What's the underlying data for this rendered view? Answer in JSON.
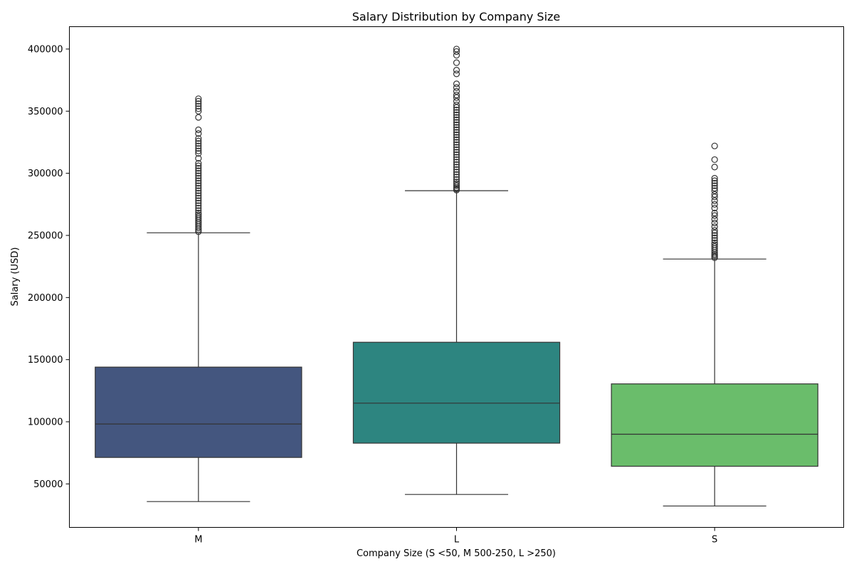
{
  "chart_data": {
    "type": "box",
    "title": "Salary Distribution by Company Size",
    "xlabel": "Company Size (S <50, M 500-250, L >250)",
    "ylabel": "Salary (USD)",
    "ylim": [
      15000,
      418000
    ],
    "yticks": [
      50000,
      100000,
      150000,
      200000,
      250000,
      300000,
      350000,
      400000
    ],
    "ytick_labels": [
      "50000",
      "100000",
      "150000",
      "200000",
      "250000",
      "300000",
      "350000",
      "400000"
    ],
    "grid": false,
    "categories": [
      "M",
      "L",
      "S"
    ],
    "boxes": [
      {
        "category": "M",
        "color": "#44567f",
        "whisker_low": 35800,
        "q1": 71300,
        "median": 98200,
        "q3": 144000,
        "whisker_high": 252100,
        "outliers": [
          253000,
          254500,
          256000,
          257500,
          259000,
          260500,
          262000,
          263500,
          265000,
          266500,
          268000,
          270000,
          272000,
          274000,
          276000,
          278000,
          280000,
          282000,
          284000,
          286000,
          288000,
          290000,
          292000,
          294000,
          296000,
          298000,
          300000,
          302000,
          304000,
          306000,
          308000,
          312000,
          316000,
          318000,
          320000,
          322000,
          324000,
          326000,
          328000,
          332000,
          335000,
          345000,
          350000,
          352000,
          354000,
          356000,
          358000,
          360000
        ]
      },
      {
        "category": "L",
        "color": "#2d8580",
        "whisker_low": 41500,
        "q1": 82800,
        "median": 115000,
        "q3": 164000,
        "whisker_high": 286000,
        "outliers": [
          286500,
          287500,
          288500,
          290000,
          291500,
          293000,
          295000,
          297000,
          299000,
          301000,
          303000,
          305000,
          307000,
          309000,
          311000,
          313000,
          315000,
          317000,
          319000,
          321000,
          323000,
          325000,
          327000,
          329000,
          331000,
          333000,
          335000,
          337000,
          339000,
          341000,
          343000,
          345000,
          347000,
          349000,
          351000,
          353000,
          355000,
          358000,
          361000,
          363000,
          366000,
          369000,
          372000,
          380000,
          383000,
          389000,
          395000,
          398000,
          400000
        ]
      },
      {
        "category": "S",
        "color": "#6abd6b",
        "whisker_low": 32200,
        "q1": 64200,
        "median": 90000,
        "q3": 130500,
        "whisker_high": 231000,
        "outliers": [
          232000,
          233000,
          234000,
          235000,
          236500,
          238000,
          239500,
          241000,
          242500,
          244000,
          246000,
          248000,
          250000,
          252000,
          254000,
          257000,
          260000,
          263000,
          266000,
          268000,
          272000,
          275000,
          278000,
          281000,
          283000,
          286000,
          288000,
          290000,
          292000,
          294000,
          296000,
          305000,
          311000,
          322000
        ]
      }
    ]
  }
}
